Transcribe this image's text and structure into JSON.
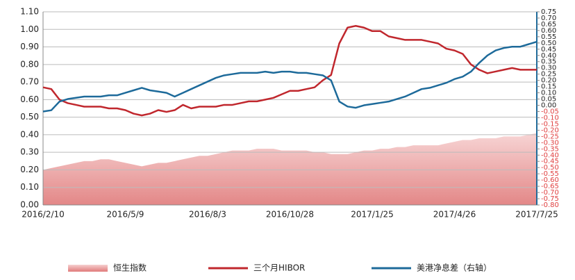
{
  "chart_data": {
    "type": "line",
    "categories": [
      "2016/2/10",
      null,
      null,
      null,
      null,
      null,
      null,
      null,
      null,
      null,
      "2016/5/9",
      null,
      null,
      null,
      null,
      null,
      null,
      null,
      null,
      null,
      "2016/8/3",
      null,
      null,
      null,
      null,
      null,
      null,
      null,
      null,
      null,
      "2016/10/28",
      null,
      null,
      null,
      null,
      null,
      null,
      null,
      null,
      null,
      "2017/1/25",
      null,
      null,
      null,
      null,
      null,
      null,
      null,
      null,
      null,
      "2017/4/26",
      null,
      null,
      null,
      null,
      null,
      null,
      null,
      null,
      null,
      "2017/7/25"
    ],
    "series": [
      {
        "name": "恒生指数",
        "type": "area",
        "color": "#e89a9a",
        "values": [
          0.2,
          0.21,
          0.22,
          0.23,
          0.24,
          0.25,
          0.25,
          0.26,
          0.26,
          0.25,
          0.24,
          0.23,
          0.22,
          0.23,
          0.24,
          0.24,
          0.25,
          0.26,
          0.27,
          0.28,
          0.28,
          0.29,
          0.3,
          0.31,
          0.31,
          0.31,
          0.32,
          0.32,
          0.32,
          0.31,
          0.31,
          0.31,
          0.31,
          0.3,
          0.3,
          0.29,
          0.29,
          0.29,
          0.3,
          0.31,
          0.31,
          0.32,
          0.32,
          0.33,
          0.33,
          0.34,
          0.34,
          0.34,
          0.34,
          0.35,
          0.36,
          0.37,
          0.37,
          0.38,
          0.38,
          0.38,
          0.39,
          0.39,
          0.39,
          0.4,
          0.41
        ]
      },
      {
        "name": "三个月HIBOR",
        "type": "line",
        "color": "#c0272d",
        "values": [
          0.67,
          0.66,
          0.6,
          0.58,
          0.57,
          0.56,
          0.56,
          0.56,
          0.55,
          0.55,
          0.54,
          0.52,
          0.51,
          0.52,
          0.54,
          0.53,
          0.54,
          0.57,
          0.55,
          0.56,
          0.56,
          0.56,
          0.57,
          0.57,
          0.58,
          0.59,
          0.59,
          0.6,
          0.61,
          0.63,
          0.65,
          0.65,
          0.66,
          0.67,
          0.71,
          0.74,
          0.92,
          1.01,
          1.02,
          1.01,
          0.99,
          0.99,
          0.96,
          0.95,
          0.94,
          0.94,
          0.94,
          0.93,
          0.92,
          0.89,
          0.88,
          0.86,
          0.8,
          0.77,
          0.75,
          0.76,
          0.77,
          0.78,
          0.77,
          0.77,
          0.77
        ]
      },
      {
        "name": "美港净息差（右轴）",
        "type": "line",
        "axis": "y2",
        "color": "#1d6a9a",
        "values": [
          -0.05,
          -0.04,
          0.03,
          0.05,
          0.06,
          0.07,
          0.07,
          0.07,
          0.08,
          0.08,
          0.1,
          0.12,
          0.14,
          0.12,
          0.11,
          0.1,
          0.07,
          0.1,
          0.13,
          0.16,
          0.19,
          0.22,
          0.24,
          0.25,
          0.26,
          0.26,
          0.26,
          0.27,
          0.26,
          0.27,
          0.27,
          0.26,
          0.26,
          0.25,
          0.24,
          0.2,
          0.03,
          -0.01,
          -0.02,
          0.0,
          0.01,
          0.02,
          0.03,
          0.05,
          0.07,
          0.1,
          0.13,
          0.14,
          0.16,
          0.18,
          0.21,
          0.23,
          0.27,
          0.34,
          0.4,
          0.44,
          0.46,
          0.47,
          0.47,
          0.49,
          0.51
        ]
      }
    ],
    "ylim": [
      0,
      1.1
    ],
    "yticks": [
      {
        "value": 0,
        "label": "0.00"
      },
      {
        "value": 0.1,
        "label": "0.10"
      },
      {
        "value": 0.2,
        "label": "0.20"
      },
      {
        "value": 0.3,
        "label": "0.30"
      },
      {
        "value": 0.4,
        "label": "0.40"
      },
      {
        "value": 0.5,
        "label": "0.50"
      },
      {
        "value": 0.6,
        "label": "0.60"
      },
      {
        "value": 0.7,
        "label": "0.70"
      },
      {
        "value": 0.8,
        "label": "0.80"
      },
      {
        "value": 0.9,
        "label": "0.90"
      },
      {
        "value": 1.0,
        "label": "1.00"
      },
      {
        "value": 1.1,
        "label": "1.10"
      }
    ],
    "y2lim": [
      -0.8,
      0.75
    ],
    "y2ticks": [
      {
        "value": -0.8,
        "label": "-0.80"
      },
      {
        "value": -0.75,
        "label": "-0.75"
      },
      {
        "value": -0.7,
        "label": "-0.70"
      },
      {
        "value": -0.65,
        "label": "-0.65"
      },
      {
        "value": -0.6,
        "label": "-0.60"
      },
      {
        "value": -0.55,
        "label": "-0.55"
      },
      {
        "value": -0.5,
        "label": "-0.50"
      },
      {
        "value": -0.45,
        "label": "-0.45"
      },
      {
        "value": -0.4,
        "label": "-0.40"
      },
      {
        "value": -0.35,
        "label": "-0.35"
      },
      {
        "value": -0.3,
        "label": "-0.30"
      },
      {
        "value": -0.25,
        "label": "-0.25"
      },
      {
        "value": -0.2,
        "label": "-0.20"
      },
      {
        "value": -0.15,
        "label": "-0.15"
      },
      {
        "value": -0.1,
        "label": "-0.10"
      },
      {
        "value": -0.05,
        "label": "-0.05"
      },
      {
        "value": 0,
        "label": "0.00"
      },
      {
        "value": 0.05,
        "label": "0.05"
      },
      {
        "value": 0.1,
        "label": "0.10"
      },
      {
        "value": 0.15,
        "label": "0.15"
      },
      {
        "value": 0.2,
        "label": "0.20"
      },
      {
        "value": 0.25,
        "label": "0.25"
      },
      {
        "value": 0.3,
        "label": "0.30"
      },
      {
        "value": 0.35,
        "label": "0.35"
      },
      {
        "value": 0.4,
        "label": "0.40"
      },
      {
        "value": 0.45,
        "label": "0.45"
      },
      {
        "value": 0.5,
        "label": "0.50"
      },
      {
        "value": 0.55,
        "label": "0.55"
      },
      {
        "value": 0.6,
        "label": "0.60"
      },
      {
        "value": 0.65,
        "label": "0.65"
      },
      {
        "value": 0.7,
        "label": "0.70"
      },
      {
        "value": 0.75,
        "label": "0.75"
      }
    ],
    "negative_tick_color": "#e04040",
    "grid": true,
    "legend": "bottom"
  }
}
